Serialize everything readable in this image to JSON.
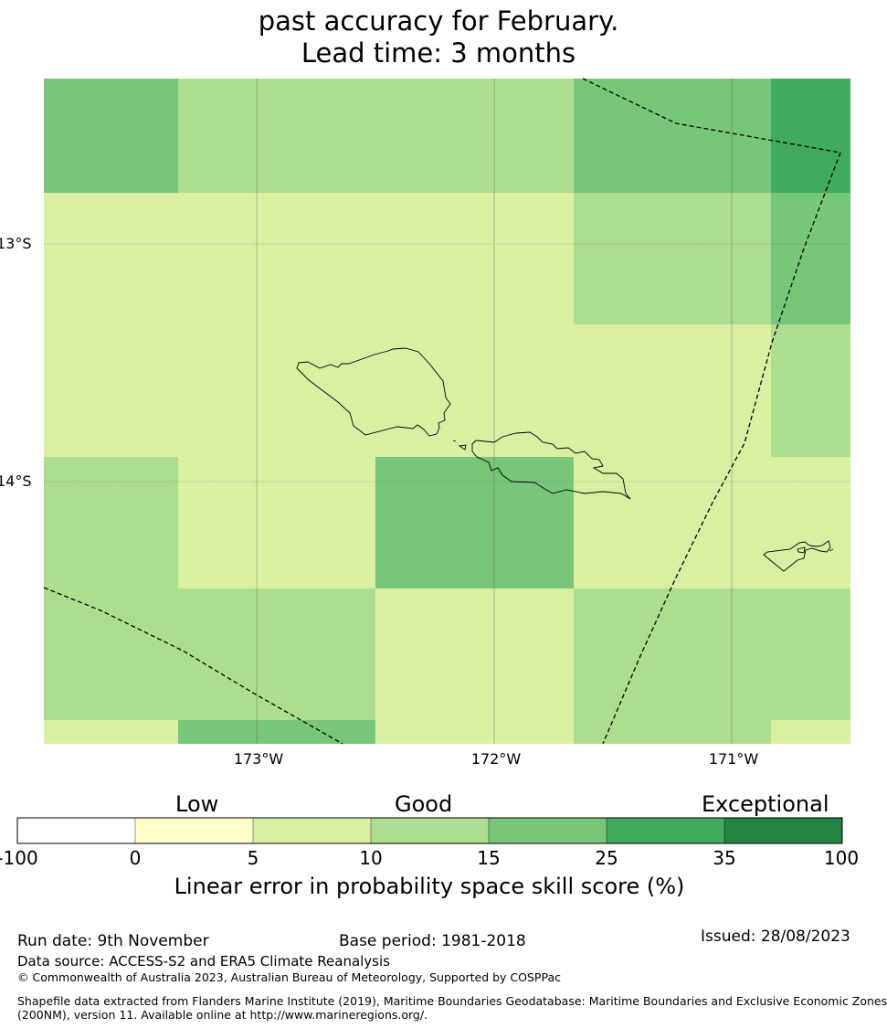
{
  "title": {
    "line1": "past accuracy for February.",
    "line2": "Lead time: 3 months"
  },
  "map": {
    "lat_labels": [
      "13°S",
      "14°S"
    ],
    "lon_labels": [
      "173°W",
      "172°W",
      "171°W"
    ],
    "colors": {
      "c5_10": "#d9f0a3",
      "c10_15": "#addd8e",
      "c15_25": "#78c679",
      "c25_35": "#41ab5d"
    }
  },
  "legend": {
    "skill_labels": [
      "Low",
      "Good",
      "Exceptional"
    ],
    "ticks": [
      "-100",
      "0",
      "5",
      "10",
      "15",
      "25",
      "35",
      "100"
    ],
    "colors": [
      "#ffffff",
      "#ffffcc",
      "#d9f0a3",
      "#addd8e",
      "#78c679",
      "#41ab5d",
      "#238443"
    ],
    "title": "Linear error in probability space skill score (%)"
  },
  "footer": {
    "run_date": "Run date: 9th November",
    "base_period": "Base period: 1981-2018",
    "issued": "Issued: 28/08/2023",
    "data_source": "Data source: ACCESS-S2 and ERA5 Climate Reanalysis",
    "copyright": "© Commonwealth of Australia 2023, Australian Bureau of Meteorology, Supported by COSPPac",
    "shapefile_line1": "Shapefile data extracted from Flanders Marine Institute (2019), Maritime Boundaries Geodatabase: Maritime Boundaries and Exclusive Economic Zones",
    "shapefile_line2": "(200NM), version 11. Available online at http://www.marineregions.org/."
  }
}
